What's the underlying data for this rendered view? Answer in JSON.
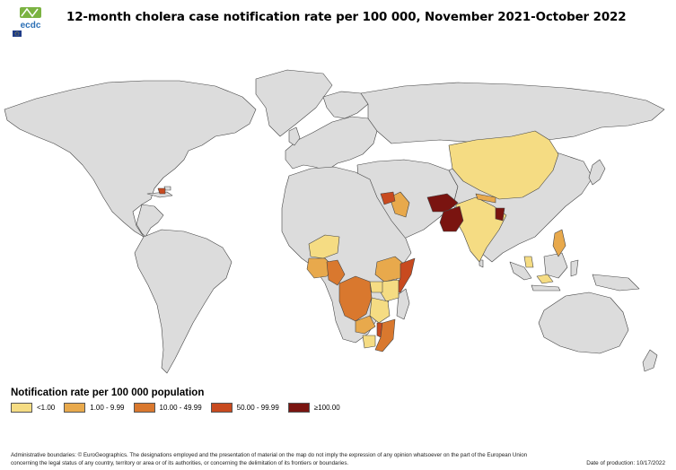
{
  "header": {
    "title": "12-month cholera case notification rate per 100 000, November 2021-October 2022",
    "logo_text": "ecdc"
  },
  "legend": {
    "title": "Notification rate per 100 000 population",
    "items": [
      {
        "label": "<1.00",
        "color": "#f5dc83"
      },
      {
        "label": "1.00 - 9.99",
        "color": "#e8a94c"
      },
      {
        "label": "10.00 - 49.99",
        "color": "#d9782e"
      },
      {
        "label": "50.00 - 99.99",
        "color": "#c84a1f"
      },
      {
        "label": "≥100.00",
        "color": "#7a1410"
      }
    ]
  },
  "map": {
    "land_color": "#dcdcdc",
    "border_color": "#444444",
    "regions": [
      {
        "name": "China",
        "category": "<1.00"
      },
      {
        "name": "India",
        "category": "<1.00"
      },
      {
        "name": "Nepal",
        "category": "1.00 - 9.99"
      },
      {
        "name": "Pakistan",
        "category": "≥100.00"
      },
      {
        "name": "Afghanistan",
        "category": "≥100.00"
      },
      {
        "name": "Bangladesh",
        "category": "≥100.00"
      },
      {
        "name": "Iraq",
        "category": "1.00 - 9.99"
      },
      {
        "name": "Syria",
        "category": "50.00 - 99.99"
      },
      {
        "name": "Lebanon",
        "category": "50.00 - 99.99"
      },
      {
        "name": "Haiti",
        "category": "50.00 - 99.99"
      },
      {
        "name": "Niger",
        "category": "<1.00"
      },
      {
        "name": "Nigeria",
        "category": "1.00 - 9.99"
      },
      {
        "name": "Cameroon",
        "category": "10.00 - 49.99"
      },
      {
        "name": "Ethiopia",
        "category": "1.00 - 9.99"
      },
      {
        "name": "Somalia",
        "category": "50.00 - 99.99"
      },
      {
        "name": "Kenya",
        "category": "<1.00"
      },
      {
        "name": "Uganda",
        "category": "<1.00"
      },
      {
        "name": "DR Congo",
        "category": "10.00 - 49.99"
      },
      {
        "name": "Tanzania",
        "category": "<1.00"
      },
      {
        "name": "Zambia",
        "category": "1.00 - 9.99"
      },
      {
        "name": "Malawi",
        "category": "50.00 - 99.99"
      },
      {
        "name": "Mozambique",
        "category": "10.00 - 49.99"
      },
      {
        "name": "Zimbabwe",
        "category": "<1.00"
      },
      {
        "name": "Philippines",
        "category": "1.00 - 9.99"
      },
      {
        "name": "Malaysia",
        "category": "<1.00"
      },
      {
        "name": "Indonesia",
        "category": "<1.00"
      }
    ]
  },
  "footer": {
    "footnote": "Administrative boundaries: © EuroGeographics. The designations employed and the presentation of material on the map do not imply the expression of any opinion whatsoever on the part of the European Union concerning the legal status of any country, territory or area or of its authorities, or concerning the delimitation of its frontiers or boundaries.",
    "production_date": "Date of production: 10/17/2022"
  }
}
